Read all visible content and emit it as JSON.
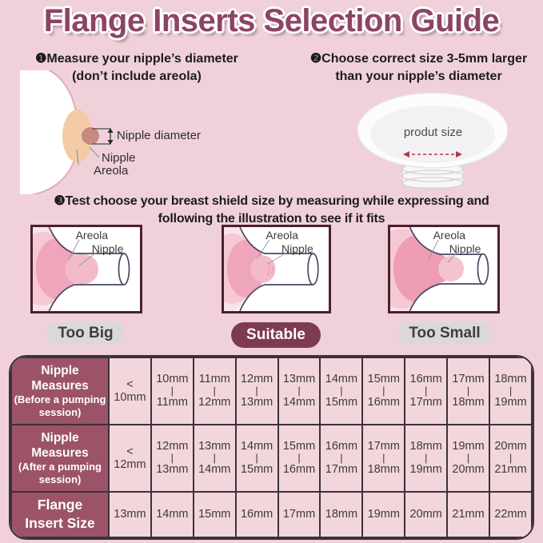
{
  "title": "Flange Inserts Selection Guide",
  "steps": [
    {
      "line1": "❶Measure your nipple’s diameter",
      "line2": "(don’t include areola)"
    },
    {
      "line1": "❷Choose correct size 3-5mm larger",
      "line2": "than your nipple’s diameter"
    },
    {
      "line1": "❸Test choose your breast shield size by measuring while expressing and",
      "line2": "following the illustration to see if it fits"
    }
  ],
  "measure_diagram": {
    "nipple_diameter_label": "Nipple diameter",
    "nipple_label": "Nipple",
    "areola_label": "Areola"
  },
  "flange_diagram": {
    "size_label": "produt size"
  },
  "fit_options": [
    {
      "areola_label": "Areola",
      "nipple_label": "Nipple",
      "caption": "Too Big"
    },
    {
      "areola_label": "Areola",
      "nipple_label": "Nipple",
      "caption": "Suitable"
    },
    {
      "areola_label": "Areola",
      "nipple_label": "Nipple",
      "caption": "Too Small"
    }
  ],
  "size_table": {
    "range_separator": "|",
    "rows": [
      {
        "header": [
          "Nipple Measures",
          "(Before a pumping",
          "session)"
        ],
        "cells": [
          {
            "value": "< 10mm"
          },
          {
            "from": "10mm",
            "to": "11mm"
          },
          {
            "from": "11mm",
            "to": "12mm"
          },
          {
            "from": "12mm",
            "to": "13mm"
          },
          {
            "from": "13mm",
            "to": "14mm"
          },
          {
            "from": "14mm",
            "to": "15mm"
          },
          {
            "from": "15mm",
            "to": "16mm"
          },
          {
            "from": "16mm",
            "to": "17mm"
          },
          {
            "from": "17mm",
            "to": "18mm"
          },
          {
            "from": "18mm",
            "to": "19mm"
          }
        ]
      },
      {
        "header": [
          "Nipple Measures",
          "(After a pumping",
          "session)"
        ],
        "cells": [
          {
            "value": "< 12mm"
          },
          {
            "from": "12mm",
            "to": "13mm"
          },
          {
            "from": "13mm",
            "to": "14mm"
          },
          {
            "from": "14mm",
            "to": "15mm"
          },
          {
            "from": "15mm",
            "to": "16mm"
          },
          {
            "from": "16mm",
            "to": "17mm"
          },
          {
            "from": "17mm",
            "to": "18mm"
          },
          {
            "from": "18mm",
            "to": "19mm"
          },
          {
            "from": "19mm",
            "to": "20mm"
          },
          {
            "from": "20mm",
            "to": "21mm"
          }
        ]
      },
      {
        "header": [
          "Flange",
          "Insert Size"
        ],
        "cells": [
          {
            "value": "13mm"
          },
          {
            "value": "14mm"
          },
          {
            "value": "15mm"
          },
          {
            "value": "16mm"
          },
          {
            "value": "17mm"
          },
          {
            "value": "18mm"
          },
          {
            "value": "19mm"
          },
          {
            "value": "20mm"
          },
          {
            "value": "21mm"
          },
          {
            "value": "22mm"
          }
        ]
      }
    ]
  },
  "colors": {
    "background": "#F1D1D9",
    "title_text": "#8C4465",
    "table_header_bg": "#9C5368",
    "table_cell_bg": "#F3D6DC",
    "table_border": "#3A323B",
    "suitable_badge_bg": "#7E3A52",
    "neutral_badge_bg": "#DBD8D9",
    "size_arrow_red": "#B23A3F",
    "areola_fill": "#F4CBA6",
    "nipple_fill": "#C8897F"
  }
}
